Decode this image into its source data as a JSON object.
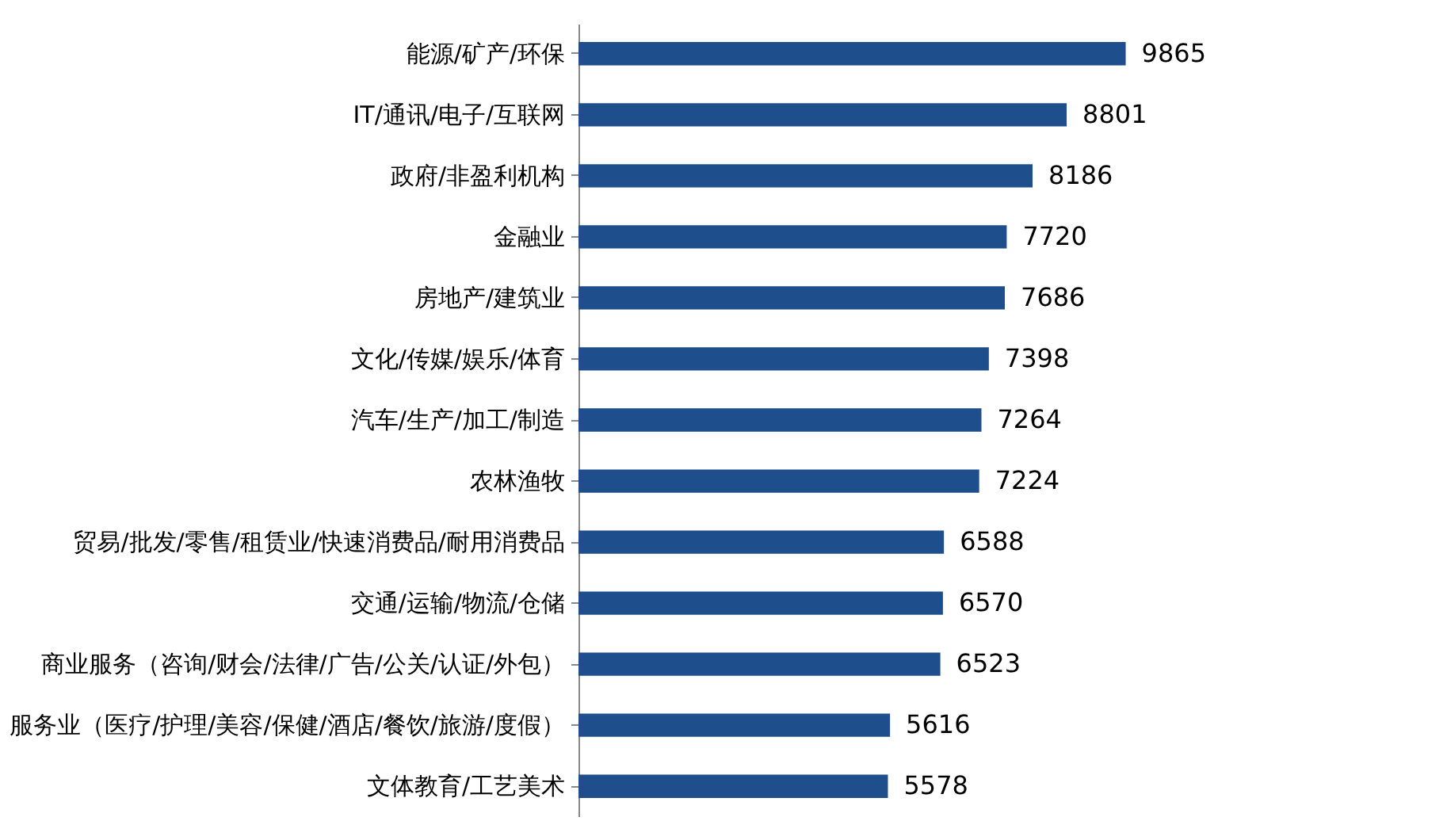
{
  "chart_data": {
    "type": "bar",
    "orientation": "horizontal",
    "data_labels": true,
    "grid": false,
    "legend": false,
    "tick_labels": "y",
    "categories": [
      "能源/矿产/环保",
      "IT/通讯/电子/互联网",
      "政府/非盈利机构",
      "金融业",
      "房地产/建筑业",
      "文化/传媒/娱乐/体育",
      "汽车/生产/加工/制造",
      "农林渔牧",
      "贸易/批发/零售/租赁业/快速消费品/耐用消费品",
      "交通/运输/物流/仓储",
      "商业服务（咨询/财会/法律/广告/公关/认证/外包）",
      "服务业（医疗/护理/美容/保健/酒店/餐饮/旅游/度假）",
      "文体教育/工艺美术"
    ],
    "series": [
      {
        "color": "#1f4e8c",
        "values": [
          9865,
          8801,
          8186,
          7720,
          7686,
          7398,
          7264,
          7224,
          6588,
          6570,
          6523,
          5616,
          5578
        ]
      }
    ]
  }
}
